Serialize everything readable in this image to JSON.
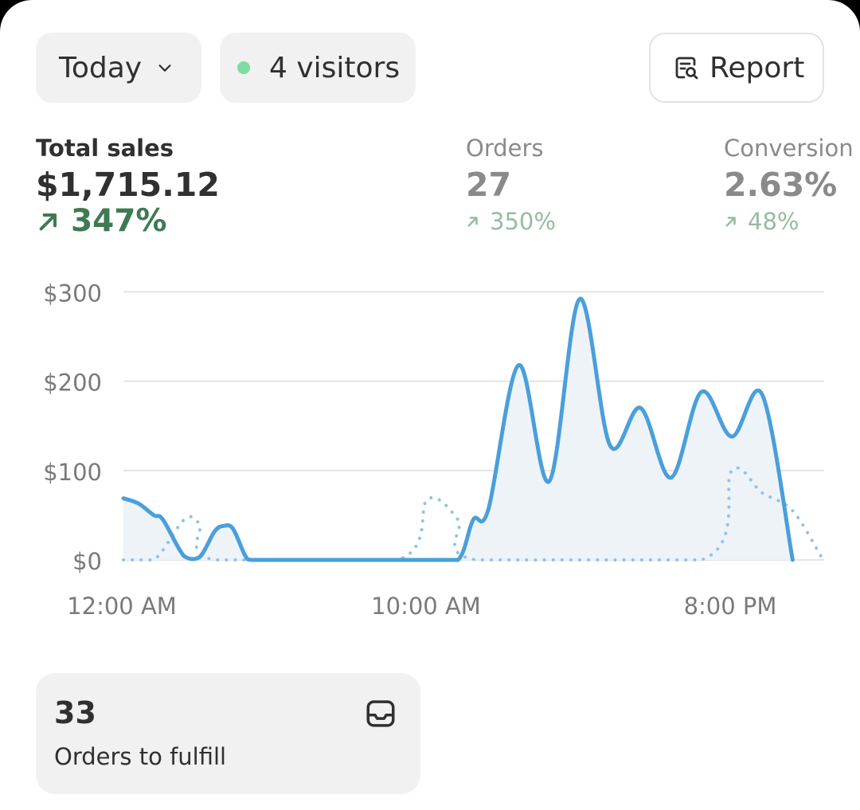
{
  "toolbar": {
    "date_range": "Today",
    "visitors": "4 visitors",
    "report_label": "Report"
  },
  "metrics": [
    {
      "label": "Total sales",
      "value": "$1,715.12",
      "change": "347%",
      "active": true
    },
    {
      "label": "Orders",
      "value": "27",
      "change": "350%",
      "active": false
    },
    {
      "label": "Conversion",
      "value": "2.63%",
      "change": "48%",
      "active": false
    }
  ],
  "chart_data": {
    "type": "line",
    "ylim": [
      0,
      300
    ],
    "y_ticks": [
      "$0",
      "$100",
      "$200",
      "$300"
    ],
    "x_tick_labels": [
      "12:00 AM",
      "10:00 AM",
      "8:00 PM"
    ],
    "series": [
      {
        "style": "solid",
        "points": [
          [
            0,
            69
          ],
          [
            0.5,
            63
          ],
          [
            1,
            50
          ],
          [
            1.3,
            45
          ],
          [
            2,
            4
          ],
          [
            2.5,
            3
          ],
          [
            3,
            32
          ],
          [
            3.3,
            38
          ],
          [
            3.6,
            35
          ],
          [
            4,
            5
          ],
          [
            4.2,
            0
          ],
          [
            5,
            0
          ],
          [
            10,
            0
          ],
          [
            11,
            0
          ],
          [
            11.5,
            45
          ],
          [
            12,
            57
          ],
          [
            13,
            218
          ],
          [
            14,
            88
          ],
          [
            15,
            292
          ],
          [
            16,
            128
          ],
          [
            17,
            170
          ],
          [
            18,
            92
          ],
          [
            19,
            188
          ],
          [
            20,
            138
          ],
          [
            21,
            185
          ],
          [
            22,
            0
          ]
        ]
      },
      {
        "style": "dotted",
        "points": [
          [
            0,
            0
          ],
          [
            1,
            0
          ],
          [
            2,
            45
          ],
          [
            2.5,
            40
          ],
          [
            3,
            0
          ],
          [
            9,
            0
          ],
          [
            10,
            68
          ],
          [
            11,
            45
          ],
          [
            11.6,
            0
          ],
          [
            19,
            0
          ],
          [
            20,
            100
          ],
          [
            21,
            75
          ],
          [
            22,
            55
          ],
          [
            23,
            0
          ]
        ]
      }
    ],
    "colors": {
      "line": "#4a9fdb",
      "dotted": "#8ec3e6",
      "fill": "#eef3f8",
      "grid": "#e4e4e4"
    }
  },
  "fulfill_card": {
    "count": "33",
    "label": "Orders to fulfill"
  },
  "colors": {
    "visitor_dot": "#7fdc9e",
    "positive": "#3e7a52",
    "positive_dim": "#94bd9f"
  }
}
